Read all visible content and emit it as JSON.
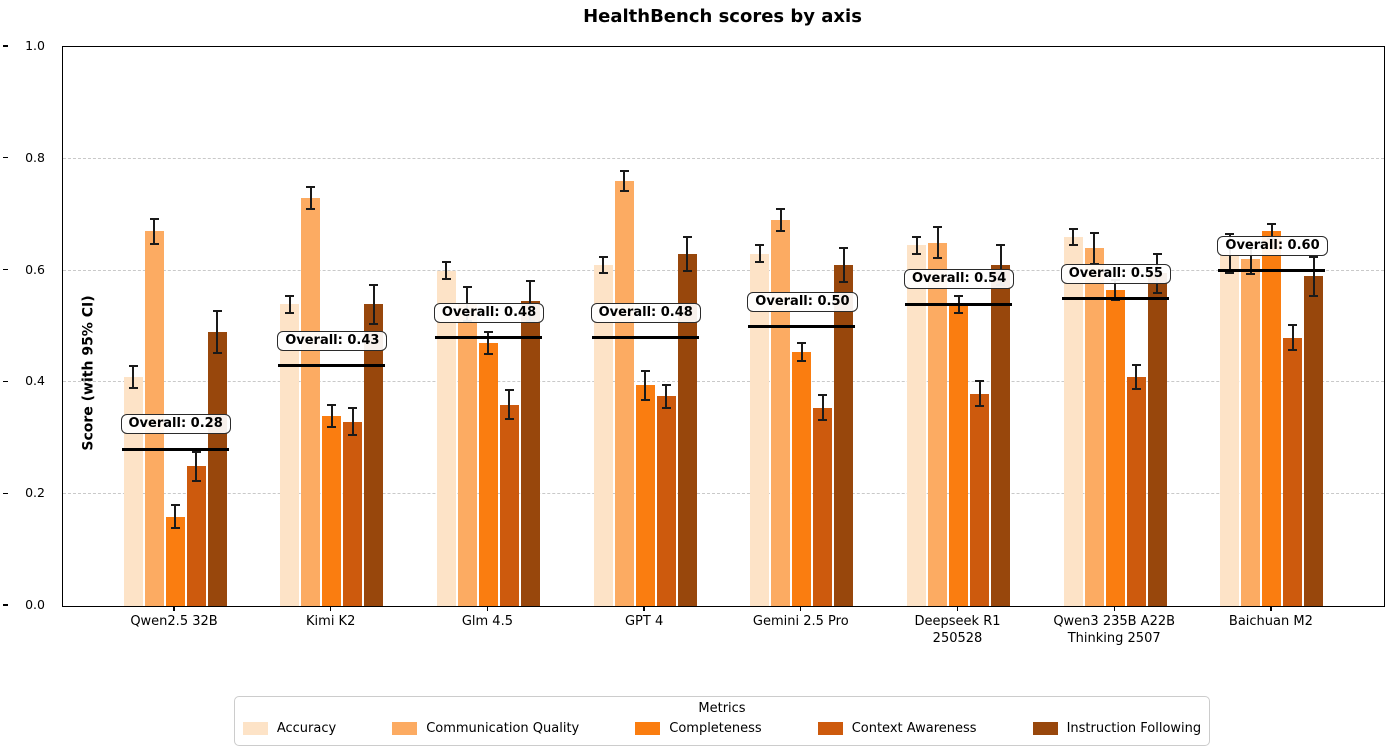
{
  "title": "HealthBench scores by axis",
  "y_axis": {
    "label": "Score (with 95% CI)",
    "tick_labels": [
      "0.0",
      "0.2",
      "0.4",
      "0.6",
      "0.8",
      "1.0"
    ]
  },
  "legend": {
    "title": "Metrics",
    "entries": [
      {
        "label": "Accuracy",
        "color": "#fde3c7"
      },
      {
        "label": "Communication Quality",
        "color": "#fcab62"
      },
      {
        "label": "Completeness",
        "color": "#fa7d10"
      },
      {
        "label": "Context Awareness",
        "color": "#cd5a0d"
      },
      {
        "label": "Instruction Following",
        "color": "#98470c"
      }
    ]
  },
  "chart_data": {
    "type": "bar",
    "title": "HealthBench scores by axis",
    "xlabel": "",
    "ylabel": "Score (with 95% CI)",
    "ylim": [
      0.0,
      1.0
    ],
    "yticks": [
      0.0,
      0.2,
      0.4,
      0.6,
      0.8,
      1.0
    ],
    "grid": "horizontal-dashed",
    "legend_position": "bottom-center",
    "error_bars": "95% CI",
    "categories": [
      "Qwen2.5 32B",
      "Kimi K2",
      "Glm 4.5",
      "GPT 4",
      "Gemini 2.5 Pro",
      "Deepseek R1\n250528",
      "Qwen3 235B A22B\nThinking 2507",
      "Baichuan M2"
    ],
    "series": [
      {
        "name": "Accuracy",
        "color": "#fde3c7",
        "values": [
          0.41,
          0.54,
          0.6,
          0.61,
          0.63,
          0.645,
          0.66,
          0.63
        ],
        "ci": [
          0.02,
          0.015,
          0.015,
          0.015,
          0.015,
          0.015,
          0.015,
          0.035
        ]
      },
      {
        "name": "Communication Quality",
        "color": "#fcab62",
        "values": [
          0.67,
          0.73,
          0.54,
          0.76,
          0.69,
          0.65,
          0.64,
          0.62
        ],
        "ci": [
          0.022,
          0.02,
          0.03,
          0.018,
          0.02,
          0.028,
          0.028,
          0.026
        ]
      },
      {
        "name": "Completeness",
        "color": "#fa7d10",
        "values": [
          0.16,
          0.34,
          0.47,
          0.395,
          0.455,
          0.54,
          0.565,
          0.67
        ],
        "ci": [
          0.02,
          0.02,
          0.02,
          0.026,
          0.016,
          0.015,
          0.018,
          0.014
        ]
      },
      {
        "name": "Context Awareness",
        "color": "#cd5a0d",
        "values": [
          0.25,
          0.33,
          0.36,
          0.375,
          0.355,
          0.38,
          0.41,
          0.48
        ],
        "ci": [
          0.026,
          0.024,
          0.026,
          0.02,
          0.022,
          0.022,
          0.022,
          0.022
        ]
      },
      {
        "name": "Instruction Following",
        "color": "#98470c",
        "values": [
          0.49,
          0.54,
          0.545,
          0.63,
          0.61,
          0.61,
          0.595,
          0.59
        ],
        "ci": [
          0.038,
          0.035,
          0.036,
          0.03,
          0.03,
          0.035,
          0.035,
          0.035
        ]
      }
    ],
    "overall_annotations": {
      "label_prefix": "Overall: ",
      "values": [
        0.28,
        0.43,
        0.48,
        0.48,
        0.5,
        0.54,
        0.55,
        0.6
      ],
      "labels": [
        "0.28",
        "0.43",
        "0.48",
        "0.48",
        "0.50",
        "0.54",
        "0.55",
        "0.60"
      ]
    }
  }
}
